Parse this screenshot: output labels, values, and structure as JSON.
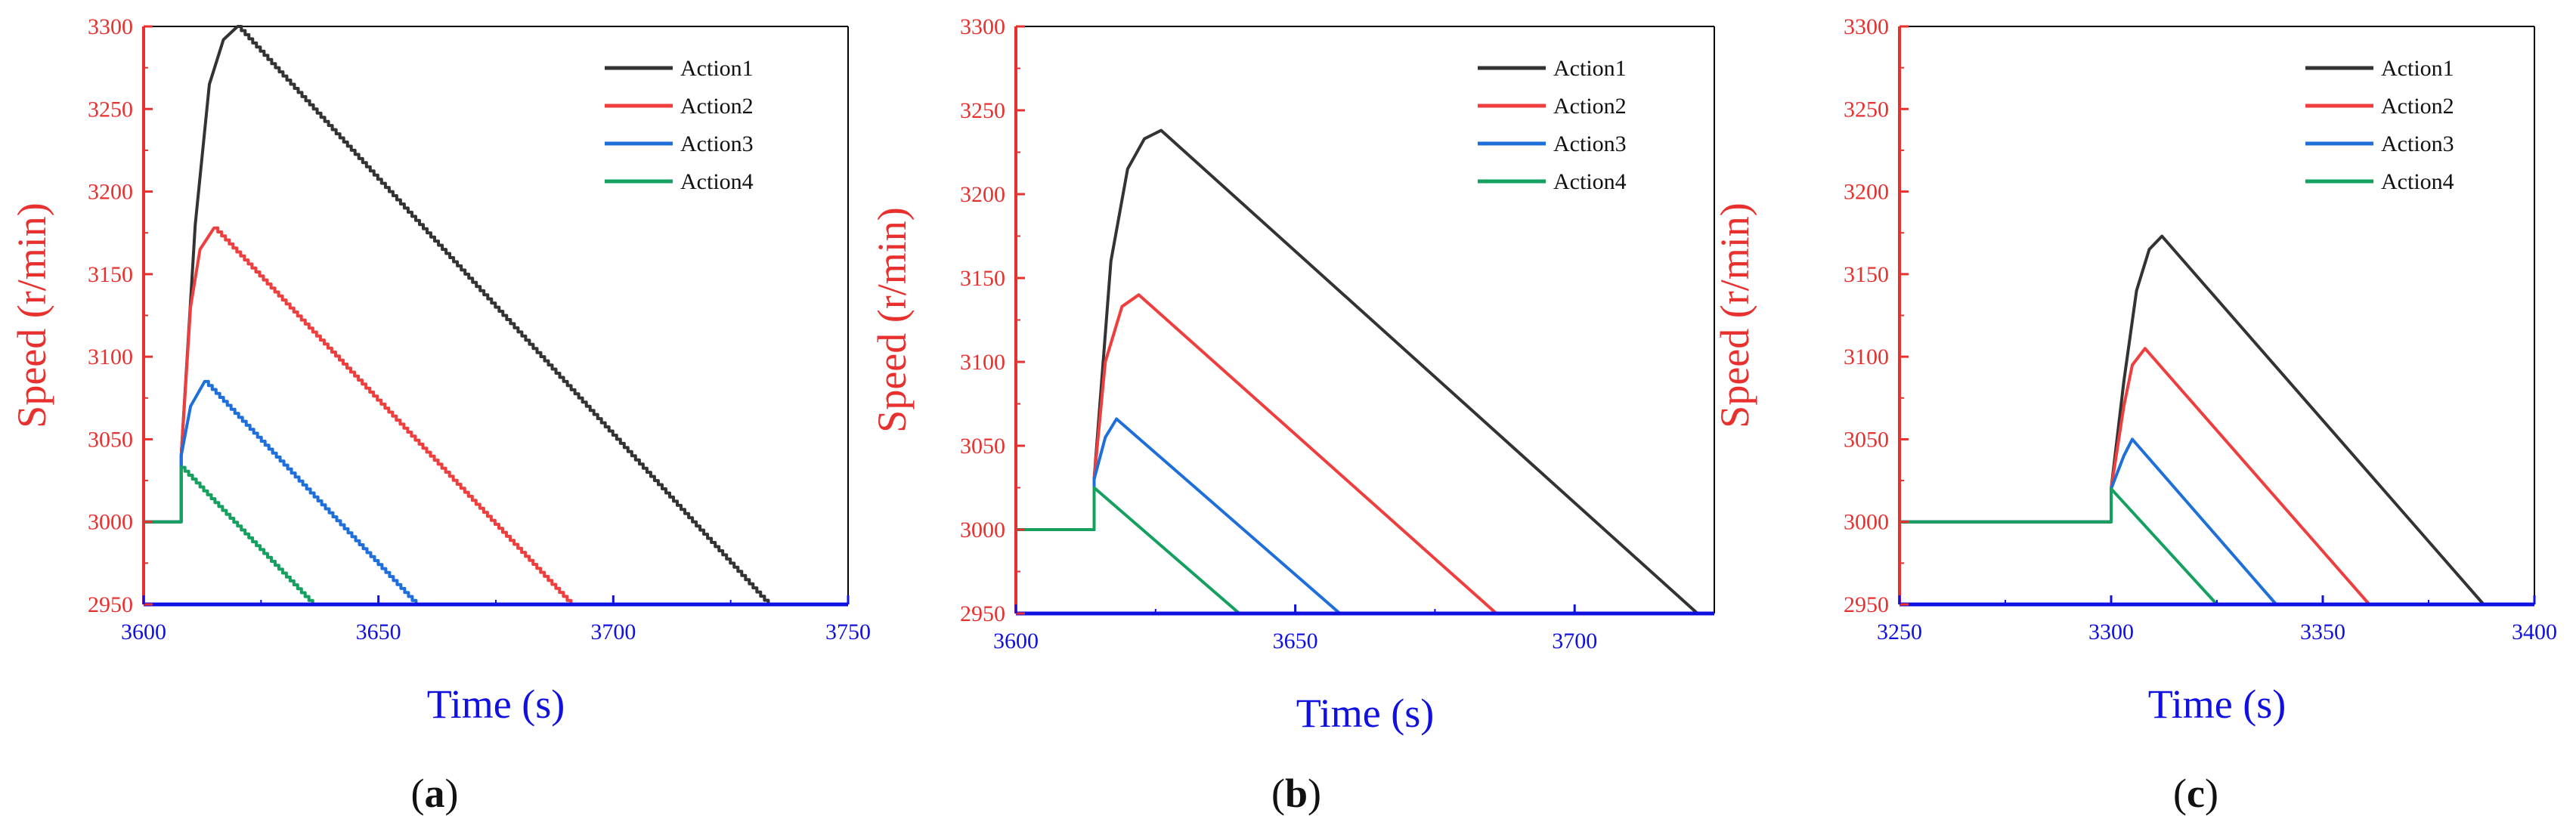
{
  "colors": {
    "y_axis": "#e8312f",
    "x_axis": "#1010e0",
    "series": [
      "#333333",
      "#ef3e3e",
      "#1e6fd9",
      "#15a060"
    ]
  },
  "chart_data": [
    {
      "type": "line",
      "panel_label": "a",
      "xlabel": "Time (s)",
      "ylabel": "Speed (r/min)",
      "xlim": [
        3600,
        3750
      ],
      "ylim": [
        2950,
        3300
      ],
      "xticks": [
        "3600",
        "3650",
        "3700",
        "3750"
      ],
      "yticks": [
        "2950",
        "3000",
        "3050",
        "3100",
        "3150",
        "3200",
        "3250",
        "3300"
      ],
      "stepped": true,
      "legend": [
        "Action1",
        "Action2",
        "Action3",
        "Action4"
      ],
      "series": [
        {
          "name": "Action1",
          "x": [
            3600,
            3608,
            3608,
            3611,
            3614,
            3617,
            3620,
            3733
          ],
          "y": [
            3000,
            3000,
            3040,
            3180,
            3265,
            3292,
            3300,
            2950
          ]
        },
        {
          "name": "Action2",
          "x": [
            3600,
            3608,
            3608,
            3610,
            3612,
            3615,
            3691
          ],
          "y": [
            3000,
            3000,
            3040,
            3130,
            3165,
            3178,
            2950
          ]
        },
        {
          "name": "Action3",
          "x": [
            3600,
            3608,
            3608,
            3610,
            3613,
            3658
          ],
          "y": [
            3000,
            3000,
            3040,
            3070,
            3085,
            2950
          ]
        },
        {
          "name": "Action4",
          "x": [
            3600,
            3608,
            3608,
            3636
          ],
          "y": [
            3000,
            3000,
            3033,
            2950
          ]
        }
      ]
    },
    {
      "type": "line",
      "panel_label": "b",
      "xlabel": "Time (s)",
      "ylabel": "Speed (r/min)",
      "xlim": [
        3600,
        3725
      ],
      "ylim": [
        2950,
        3300
      ],
      "xticks": [
        "3600",
        "3650",
        "3700"
      ],
      "yticks": [
        "2950",
        "3000",
        "3050",
        "3100",
        "3150",
        "3200",
        "3250",
        "3300"
      ],
      "stepped": false,
      "legend": [
        "Action1",
        "Action2",
        "Action3",
        "Action4"
      ],
      "series": [
        {
          "name": "Action1",
          "x": [
            3600,
            3614,
            3614,
            3617,
            3620,
            3623,
            3626,
            3722
          ],
          "y": [
            3000,
            3000,
            3030,
            3160,
            3215,
            3233,
            3238,
            2950
          ]
        },
        {
          "name": "Action2",
          "x": [
            3600,
            3614,
            3614,
            3616,
            3619,
            3622,
            3686
          ],
          "y": [
            3000,
            3000,
            3030,
            3100,
            3133,
            3140,
            2950
          ]
        },
        {
          "name": "Action3",
          "x": [
            3600,
            3614,
            3614,
            3616,
            3618,
            3658
          ],
          "y": [
            3000,
            3000,
            3030,
            3055,
            3066,
            2950
          ]
        },
        {
          "name": "Action4",
          "x": [
            3600,
            3614,
            3614,
            3640
          ],
          "y": [
            3000,
            3000,
            3025,
            2950
          ]
        }
      ]
    },
    {
      "type": "line",
      "panel_label": "c",
      "xlabel": "Time (s)",
      "ylabel": "Speed (r/min)",
      "xlim": [
        3250,
        3400
      ],
      "ylim": [
        2950,
        3300
      ],
      "xticks": [
        "3250",
        "3300",
        "3350",
        "3400"
      ],
      "yticks": [
        "2950",
        "3000",
        "3050",
        "3100",
        "3150",
        "3200",
        "3250",
        "3300"
      ],
      "stepped": false,
      "legend": [
        "Action1",
        "Action2",
        "Action3",
        "Action4"
      ],
      "series": [
        {
          "name": "Action1",
          "x": [
            3250,
            3300,
            3300,
            3303,
            3306,
            3309,
            3312,
            3388
          ],
          "y": [
            3000,
            3000,
            3020,
            3085,
            3140,
            3165,
            3173,
            2950
          ]
        },
        {
          "name": "Action2",
          "x": [
            3250,
            3300,
            3300,
            3303,
            3305,
            3308,
            3361
          ],
          "y": [
            3000,
            3000,
            3020,
            3070,
            3095,
            3105,
            2950
          ]
        },
        {
          "name": "Action3",
          "x": [
            3250,
            3300,
            3300,
            3303,
            3305,
            3339
          ],
          "y": [
            3000,
            3000,
            3020,
            3040,
            3050,
            2950
          ]
        },
        {
          "name": "Action4",
          "x": [
            3250,
            3300,
            3300,
            3325
          ],
          "y": [
            3000,
            3000,
            3020,
            2950
          ]
        }
      ]
    }
  ]
}
